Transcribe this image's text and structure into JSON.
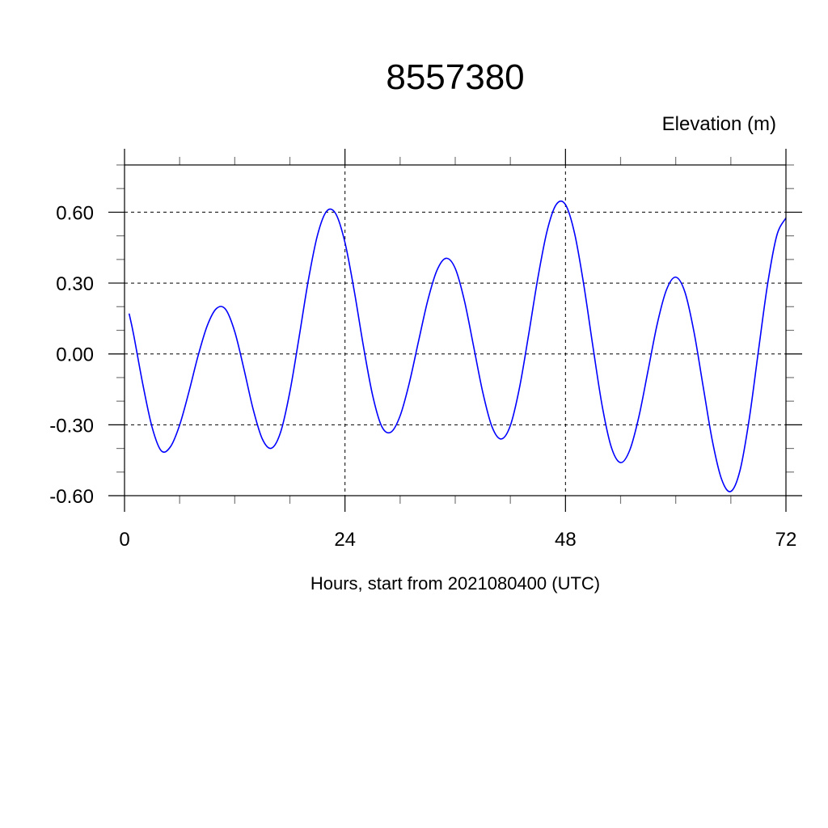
{
  "chart_data": {
    "type": "line",
    "title": "8557380",
    "ylabel": "Elevation (m)",
    "xlabel": "Hours, start from 2021080400 (UTC)",
    "xlim": [
      0,
      72
    ],
    "ylim": [
      -0.6,
      0.8
    ],
    "x_ticks": [
      0,
      24,
      48,
      72
    ],
    "x_tick_labels": [
      "0",
      "24",
      "48",
      "72"
    ],
    "x_minor_step": 6,
    "y_ticks": [
      -0.6,
      -0.3,
      0.0,
      0.3,
      0.6
    ],
    "y_tick_labels": [
      "-0.60",
      "-0.30",
      "0.00",
      "0.30",
      "0.60"
    ],
    "y_minor_step": 0.1,
    "grid": true,
    "line_color": "#0000ff",
    "series": [
      {
        "x": [
          0.5,
          1,
          2,
          3,
          4,
          5,
          6,
          7,
          8,
          9,
          10,
          11,
          12,
          13,
          14,
          15,
          16,
          17,
          18,
          19,
          20,
          21,
          22,
          23,
          24,
          25,
          26,
          27,
          28,
          29,
          30,
          31,
          32,
          33,
          34,
          35,
          36,
          37,
          38,
          39,
          40,
          41,
          42,
          43,
          44,
          45,
          46,
          47,
          48,
          49,
          50,
          51,
          52,
          53,
          54,
          55,
          56,
          57,
          58,
          59,
          60,
          61,
          62,
          63,
          64,
          65,
          66,
          67,
          68,
          69,
          70,
          71,
          72
        ],
        "y": [
          0.171,
          0.08,
          -0.13,
          -0.31,
          -0.41,
          -0.393,
          -0.301,
          -0.162,
          -0.009,
          0.119,
          0.192,
          0.189,
          0.094,
          -0.064,
          -0.234,
          -0.36,
          -0.399,
          -0.33,
          -0.16,
          0.07,
          0.31,
          0.502,
          0.604,
          0.593,
          0.471,
          0.268,
          0.034,
          -0.174,
          -0.307,
          -0.331,
          -0.262,
          -0.123,
          0.053,
          0.225,
          0.353,
          0.405,
          0.362,
          0.225,
          0.032,
          -0.163,
          -0.308,
          -0.36,
          -0.303,
          -0.142,
          0.084,
          0.323,
          0.521,
          0.633,
          0.632,
          0.509,
          0.291,
          0.028,
          -0.221,
          -0.396,
          -0.46,
          -0.407,
          -0.264,
          -0.068,
          0.129,
          0.272,
          0.325,
          0.262,
          0.091,
          -0.141,
          -0.37,
          -0.531,
          -0.582,
          -0.493,
          -0.276,
          0.012,
          0.295,
          0.501,
          0.576
        ]
      }
    ]
  }
}
